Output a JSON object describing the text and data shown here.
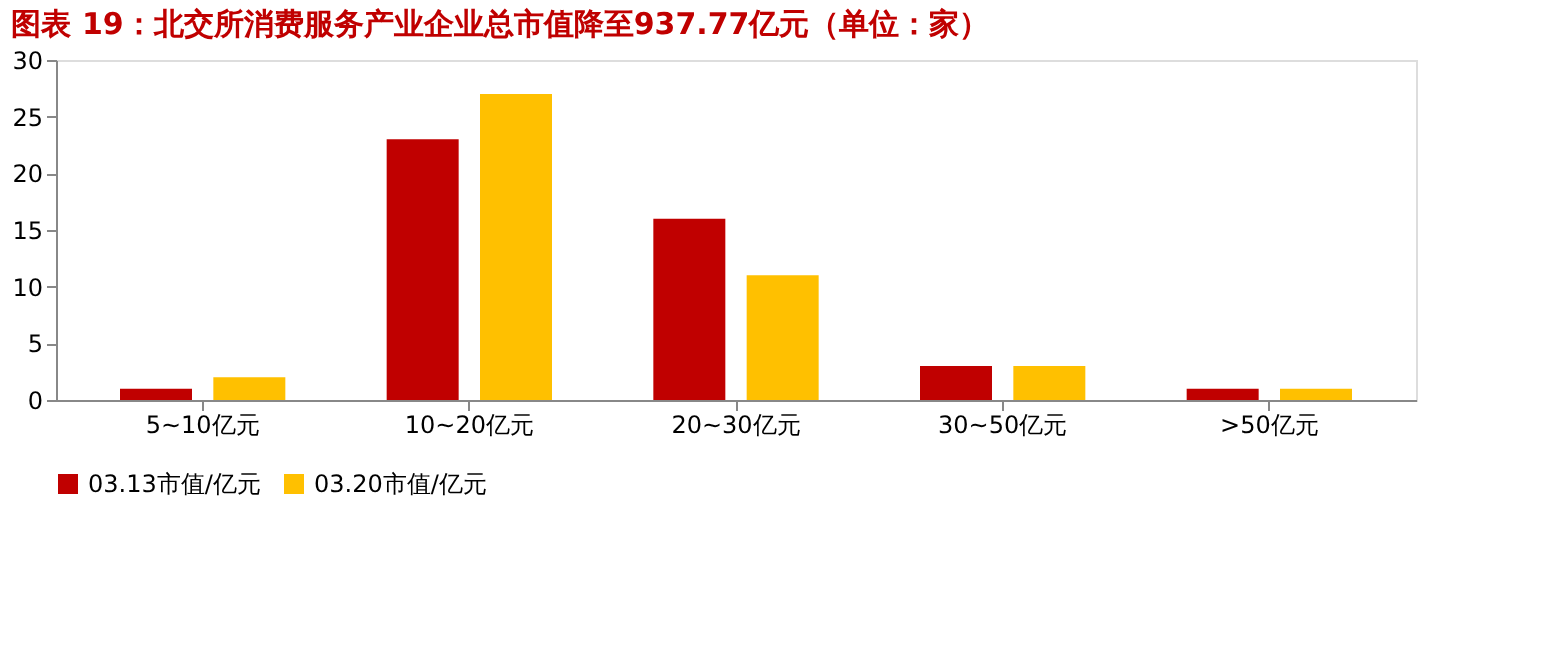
{
  "chart_data": {
    "type": "bar",
    "title": "图表 19：北交所消费服务产业企业总市值降至937.77亿元（单位：家）",
    "categories": [
      "5~10亿元",
      "10~20亿元",
      "20~30亿元",
      "30~50亿元",
      ">50亿元"
    ],
    "series": [
      {
        "name": "03.13市值/亿元",
        "color": "#c00000",
        "values": [
          1,
          23,
          16,
          3,
          1
        ]
      },
      {
        "name": "03.20市值/亿元",
        "color": "#ffc000",
        "values": [
          2,
          27,
          11,
          3,
          1
        ]
      }
    ],
    "ylim": [
      0,
      30
    ],
    "yticks": [
      0,
      5,
      10,
      15,
      20,
      25,
      30
    ],
    "grid": false,
    "legend": "bottom"
  }
}
